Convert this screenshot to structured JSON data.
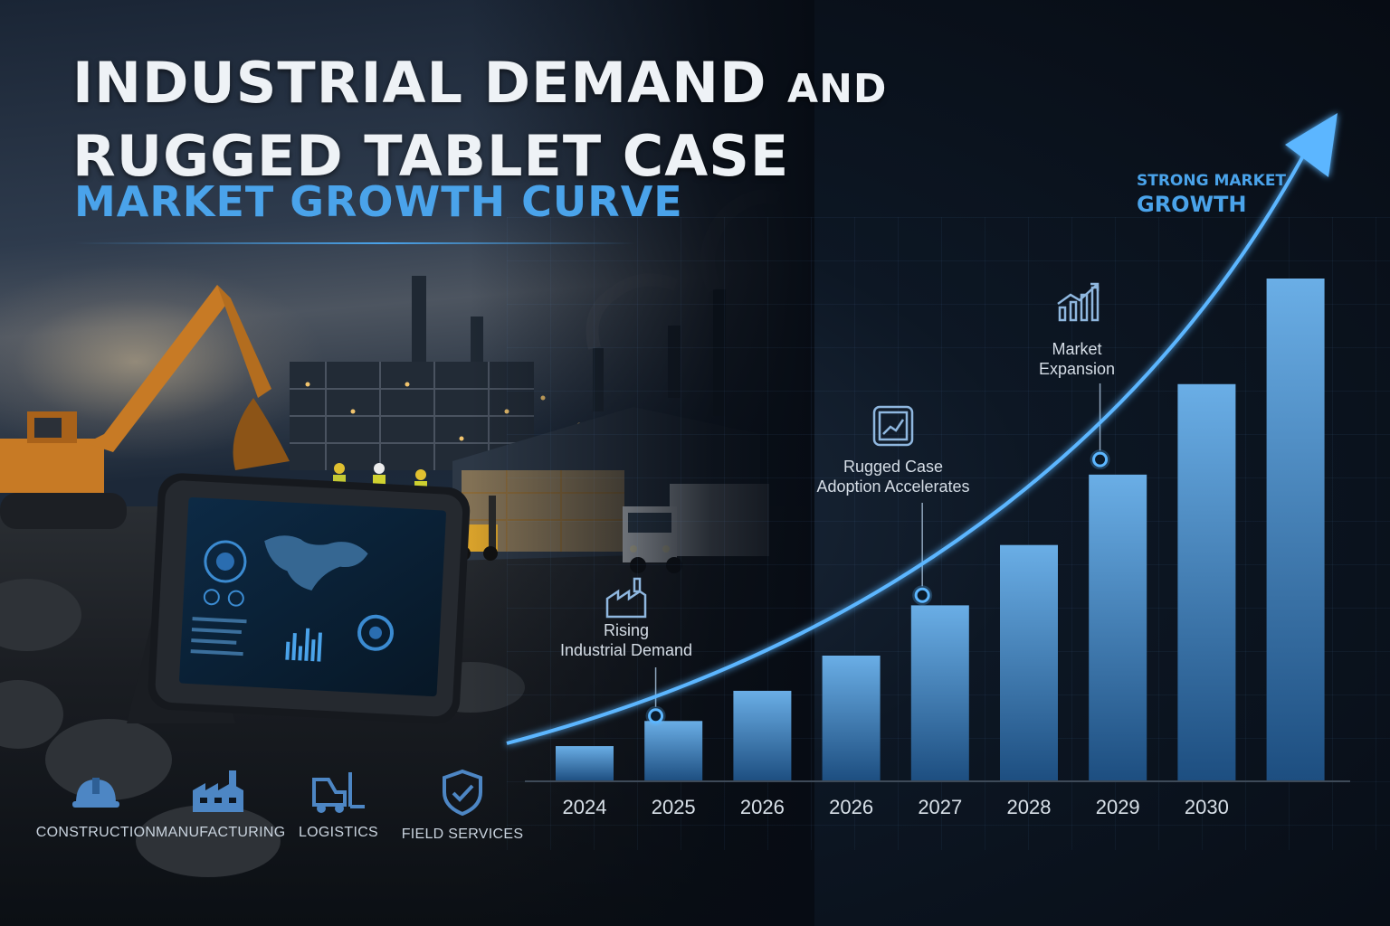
{
  "title": {
    "line1_main": "INDUSTRIAL DEMAND",
    "line1_small": "AND",
    "line2": "RUGGED TABLET CASE",
    "subtitle": "MARKET GROWTH CURVE"
  },
  "industries": [
    {
      "label": "CONSTRUCTION",
      "icon": "hard-hat-icon"
    },
    {
      "label": "MANUFACTURING",
      "icon": "factory-icon"
    },
    {
      "label": "LOGISTICS",
      "icon": "forklift-icon"
    },
    {
      "label": "FIELD SERVICES",
      "icon": "shield-check-icon"
    }
  ],
  "colors": {
    "accent": "#4aa3ea",
    "bar_top": "#6aaee6",
    "bar_bottom": "#1d4e80",
    "curve": "#5cb6ff"
  },
  "chart_data": {
    "type": "bar",
    "categories": [
      "2024",
      "2025",
      "2026",
      "2026",
      "2027",
      "2028",
      "2029",
      "2030",
      ""
    ],
    "values": [
      7,
      12,
      18,
      25,
      35,
      47,
      61,
      79,
      100
    ],
    "ylim": [
      0,
      100
    ],
    "y_axis_visible": false,
    "grid": true,
    "trend_curve": {
      "markers": [
        {
          "category_index": 0.8,
          "value": 13
        },
        {
          "category_index": 3.8,
          "value": 37
        },
        {
          "category_index": 5.8,
          "value": 64
        }
      ]
    },
    "annotations": [
      {
        "lines": [
          "Rising",
          "Industrial Demand"
        ],
        "icon": "factory-icon",
        "marker": 0
      },
      {
        "lines": [
          "Rugged Case",
          "Adoption Accelerates"
        ],
        "icon": "tablet-icon",
        "marker": 1
      },
      {
        "lines": [
          "Market",
          "Expansion"
        ],
        "icon": "growth-chart-icon",
        "marker": 2
      }
    ],
    "callout": [
      "STRONG MARKET",
      "GROWTH"
    ]
  }
}
